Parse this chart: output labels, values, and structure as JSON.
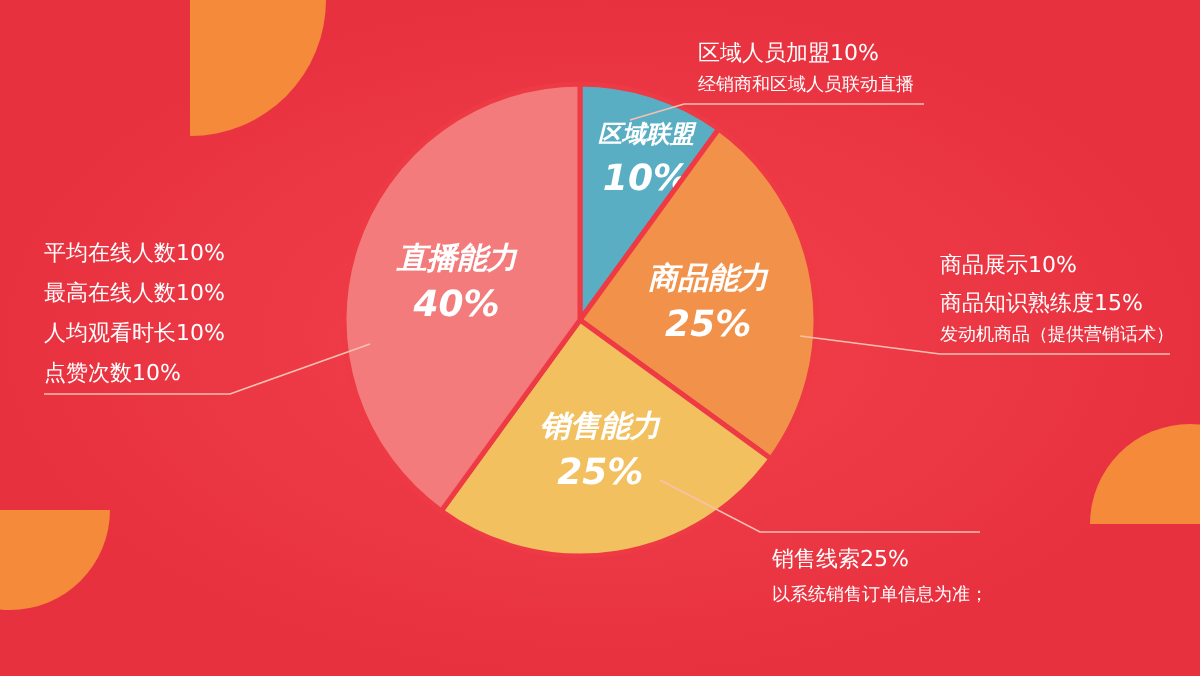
{
  "chart_data": {
    "type": "pie",
    "categories": [
      "区域联盟",
      "商品能力",
      "销售能力",
      "直播能力"
    ],
    "values": [
      10,
      25,
      25,
      40
    ],
    "value_labels": [
      "10%",
      "25%",
      "25%",
      "40%"
    ],
    "colors": [
      "#5aaec4",
      "#f2924a",
      "#f3c060",
      "#f37b7b"
    ],
    "data_labels": true,
    "annotations": [
      "区域人员加盟10%",
      "经销商和区域人员联动直播",
      "商品展示10%",
      "商品知识熟练度15%",
      "发动机商品（提供营销话术）",
      "平均在线人数10%",
      "最高在线人数10%",
      "人均观看时长10%",
      "点赞次数10%",
      "销售线索25%",
      "以系统销售订单信息为准；"
    ]
  }
}
